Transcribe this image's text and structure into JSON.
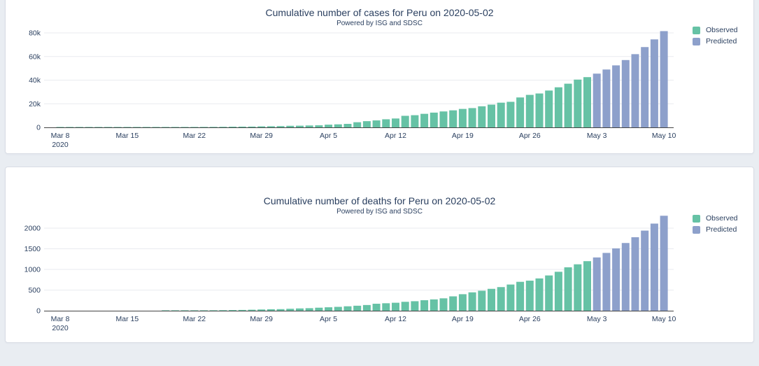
{
  "page": {
    "background_color": "#e9edf2",
    "card_background": "#ffffff",
    "text_color": "#2a3f5f",
    "axis_line_color": "#444444",
    "gridline_color": "#e9ebef"
  },
  "chart_data": [
    {
      "type": "bar",
      "title": "Cumulative number of cases for Peru on 2020-05-02",
      "subtitle": "Powered by ISG and SDSC",
      "x_start": "2020-03-08",
      "x_end": "2020-05-10",
      "grid": "horizontal",
      "legend_position": "top-right",
      "ylim": [
        0,
        84700
      ],
      "y_ticks": [
        {
          "value": 0,
          "label": "0"
        },
        {
          "value": 20000,
          "label": "20k"
        },
        {
          "value": 40000,
          "label": "40k"
        },
        {
          "value": 60000,
          "label": "60k"
        },
        {
          "value": 80000,
          "label": "80k"
        }
      ],
      "x_ticks": [
        {
          "day": 0,
          "label": "Mar 8",
          "sublabel": "2020"
        },
        {
          "day": 7,
          "label": "Mar 15"
        },
        {
          "day": 14,
          "label": "Mar 22"
        },
        {
          "day": 21,
          "label": "Mar 29"
        },
        {
          "day": 28,
          "label": "Apr 5"
        },
        {
          "day": 35,
          "label": "Apr 12"
        },
        {
          "day": 42,
          "label": "Apr 19"
        },
        {
          "day": 49,
          "label": "Apr 26"
        },
        {
          "day": 56,
          "label": "May 3"
        },
        {
          "day": 63,
          "label": "May 10"
        }
      ],
      "series": [
        {
          "name": "Observed",
          "color": "#66c2a5",
          "start_day": 0,
          "values": [
            6,
            9,
            11,
            17,
            22,
            38,
            43,
            86,
            117,
            145,
            234,
            234,
            263,
            318,
            363,
            395,
            416,
            480,
            580,
            635,
            671,
            852,
            950,
            1065,
            1323,
            1414,
            1595,
            1746,
            2281,
            2561,
            2954,
            4342,
            5256,
            5897,
            6848,
            7519,
            9784,
            10303,
            11475,
            12491,
            13489,
            14420,
            15628,
            16325,
            17837,
            19250,
            20914,
            21648,
            25331,
            27517,
            28699,
            31190,
            33931,
            36976,
            40459,
            42534
          ]
        },
        {
          "name": "Predicted",
          "color": "#8da0cb",
          "start_day": 56,
          "values": [
            45500,
            49000,
            52500,
            57000,
            62000,
            68000,
            74500,
            81500
          ]
        }
      ]
    },
    {
      "type": "bar",
      "title": "Cumulative number of deaths for Peru on 2020-05-02",
      "subtitle": "Powered by ISG and SDSC",
      "x_start": "2020-03-08",
      "x_end": "2020-05-10",
      "grid": "horizontal",
      "legend_position": "top-right",
      "ylim": [
        0,
        2460
      ],
      "y_ticks": [
        {
          "value": 0,
          "label": "0"
        },
        {
          "value": 500,
          "label": "500"
        },
        {
          "value": 1000,
          "label": "1000"
        },
        {
          "value": 1500,
          "label": "1500"
        },
        {
          "value": 2000,
          "label": "2000"
        }
      ],
      "x_ticks": [
        {
          "day": 0,
          "label": "Mar 8",
          "sublabel": "2020"
        },
        {
          "day": 7,
          "label": "Mar 15"
        },
        {
          "day": 14,
          "label": "Mar 22"
        },
        {
          "day": 21,
          "label": "Mar 29"
        },
        {
          "day": 28,
          "label": "Apr 5"
        },
        {
          "day": 35,
          "label": "Apr 12"
        },
        {
          "day": 42,
          "label": "Apr 19"
        },
        {
          "day": 49,
          "label": "Apr 26"
        },
        {
          "day": 56,
          "label": "May 3"
        },
        {
          "day": 63,
          "label": "May 10"
        }
      ],
      "series": [
        {
          "name": "Observed",
          "color": "#66c2a5",
          "start_day": 0,
          "values": [
            0,
            0,
            0,
            0,
            0,
            0,
            0,
            0,
            0,
            0,
            0,
            3,
            4,
            5,
            7,
            9,
            11,
            13,
            16,
            19,
            24,
            30,
            36,
            38,
            47,
            55,
            61,
            73,
            83,
            93,
            107,
            121,
            138,
            169,
            181,
            193,
            216,
            230,
            254,
            274,
            300,
            348,
            400,
            445,
            484,
            530,
            572,
            634,
            700,
            728,
            782,
            854,
            943,
            1051,
            1124,
            1200
          ]
        },
        {
          "name": "Predicted",
          "color": "#8da0cb",
          "start_day": 56,
          "values": [
            1290,
            1400,
            1510,
            1640,
            1780,
            1940,
            2110,
            2300
          ]
        }
      ]
    }
  ]
}
